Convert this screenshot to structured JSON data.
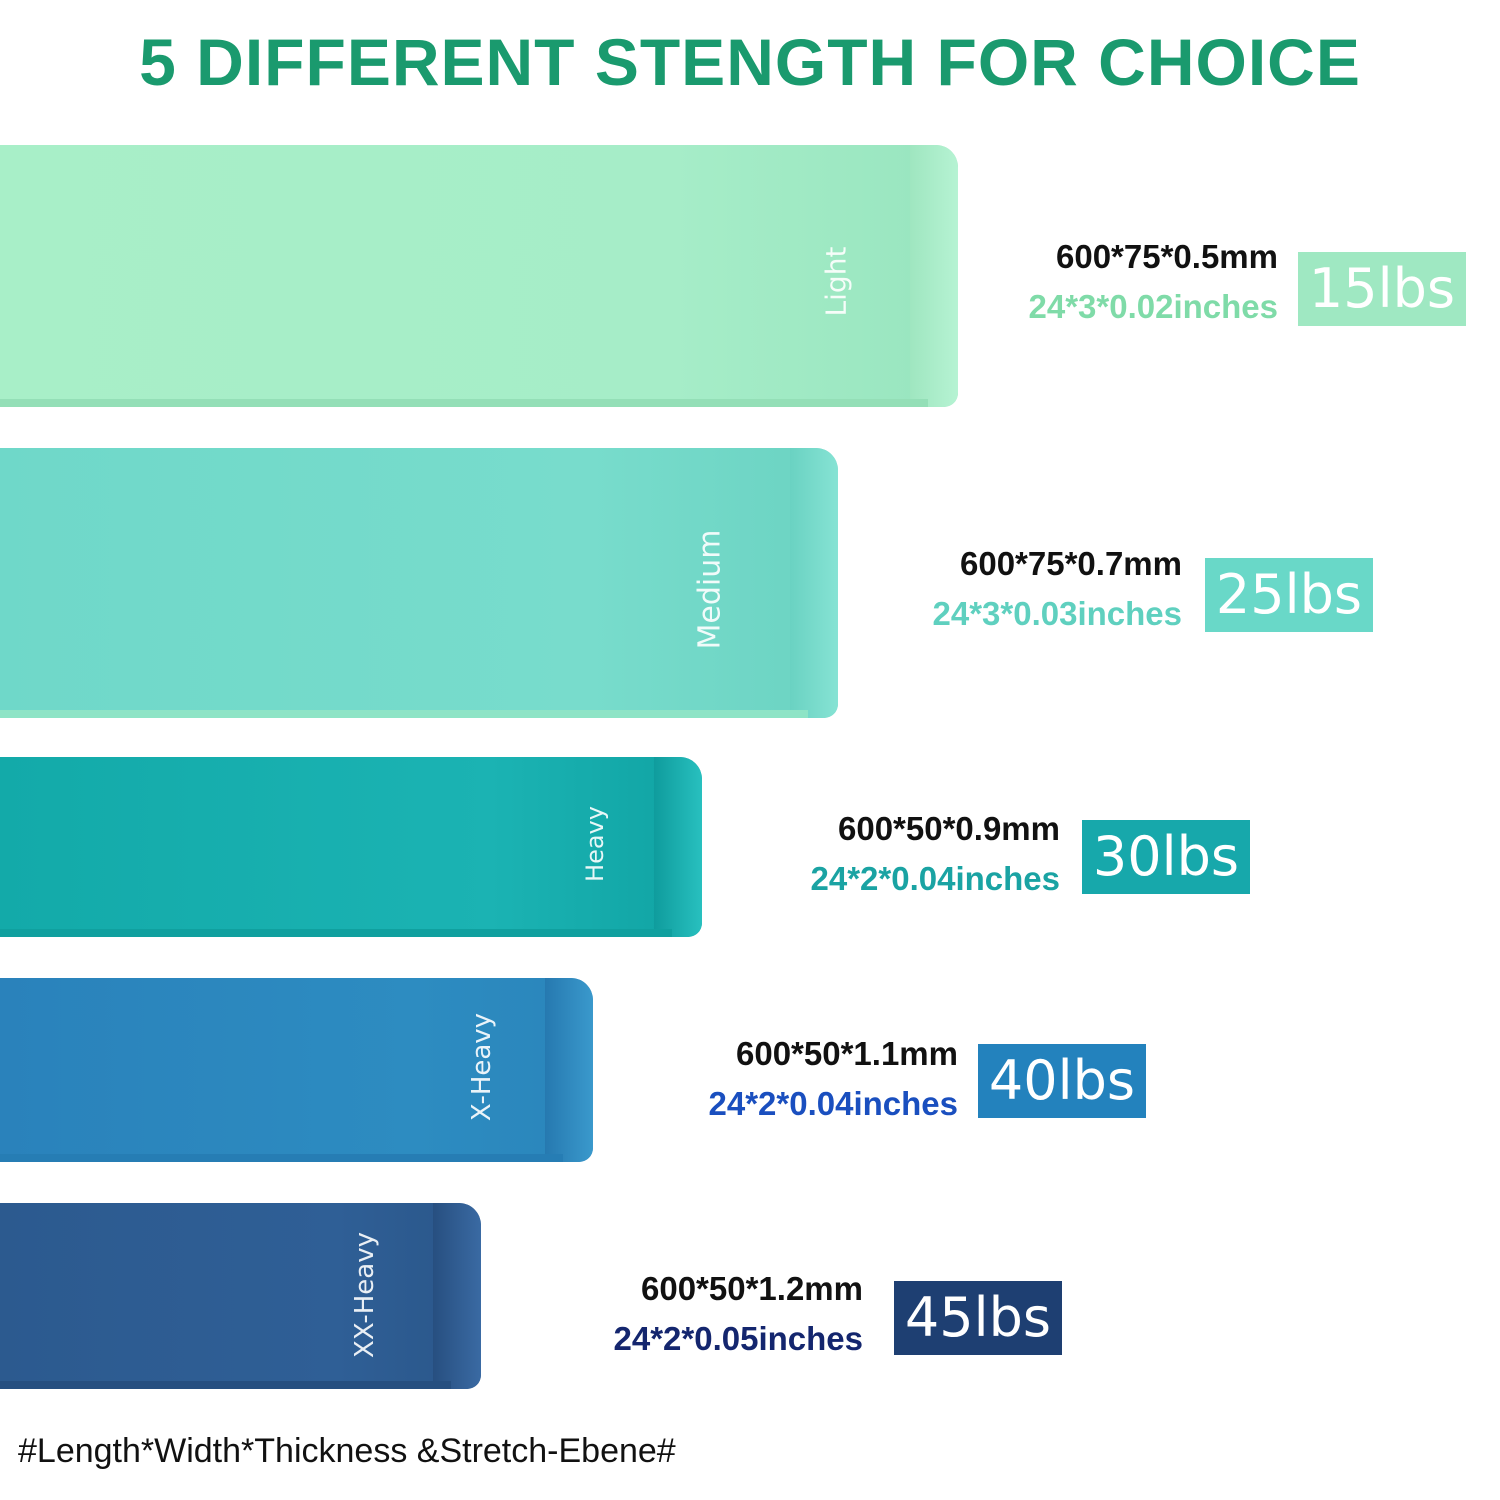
{
  "title": "5 DIFFERENT STENGTH FOR CHOICE",
  "bands": [
    {
      "label": "Light",
      "mm": "600*75*0.5mm",
      "inches": "24*3*0.02inches",
      "weight": "15lbs",
      "color": "#a7edc6",
      "inch_color": "#7fdba8",
      "badge_color": "#9fe8c2"
    },
    {
      "label": "Medium",
      "mm": "600*75*0.7mm",
      "inches": "24*3*0.03inches",
      "weight": "25lbs",
      "color": "#78dccc",
      "inch_color": "#5fd0bf",
      "badge_color": "#69d8c8"
    },
    {
      "label": "Heavy",
      "mm": "600*50*0.9mm",
      "inches": "24*2*0.04inches",
      "weight": "30lbs",
      "color": "#1bb3b3",
      "inch_color": "#1aa3a3",
      "badge_color": "#17a8ab"
    },
    {
      "label": "X-Heavy",
      "mm": "600*50*1.1mm",
      "inches": "24*2*0.04inches",
      "weight": "40lbs",
      "color": "#2d8cc1",
      "inch_color": "#1a4fbf",
      "badge_color": "#2382bd"
    },
    {
      "label": "XX-Heavy",
      "mm": "600*50*1.2mm",
      "inches": "24*2*0.05inches",
      "weight": "45lbs",
      "color": "#2f5f96",
      "inch_color": "#14266e",
      "badge_color": "#1e3f72"
    }
  ],
  "footer": "#Length*Width*Thickness &Stretch-Ebene#"
}
